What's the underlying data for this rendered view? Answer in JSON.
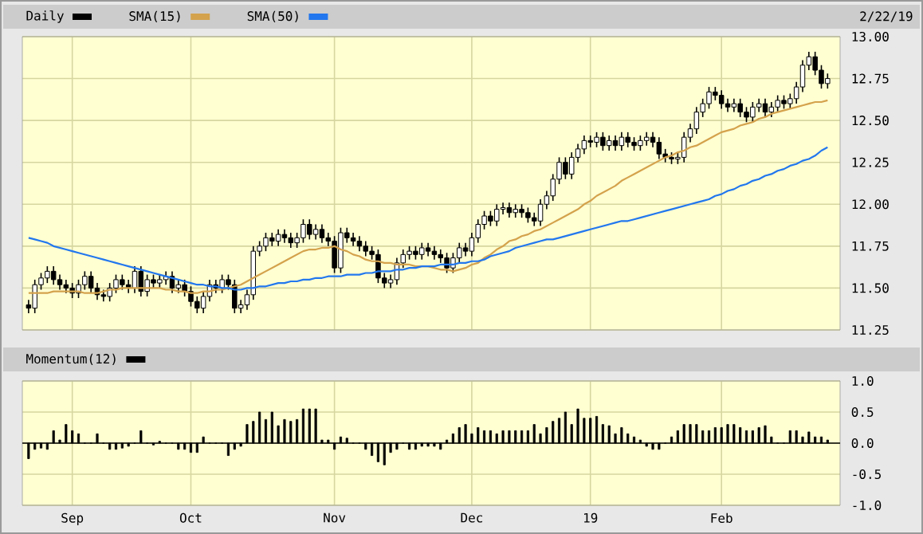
{
  "chart_data": [
    {
      "type": "candlestick",
      "categories": [
        null,
        null,
        null,
        null,
        null,
        null,
        null,
        null,
        null,
        null,
        null,
        null,
        null,
        null,
        null,
        null,
        null,
        null,
        null,
        null,
        null,
        null,
        null,
        null,
        null,
        null,
        null,
        null,
        null,
        null,
        null,
        null,
        null,
        null,
        null,
        null,
        null,
        null,
        null,
        null,
        null,
        null,
        null,
        null,
        null,
        null,
        null,
        null,
        null,
        null,
        null,
        null,
        null,
        null,
        null,
        null,
        null,
        null,
        null,
        null,
        null,
        null,
        null,
        null,
        null,
        null,
        null,
        null,
        null,
        null,
        null,
        null,
        null,
        null,
        null,
        null,
        null,
        null,
        null,
        null,
        null,
        null,
        null,
        null,
        null,
        null,
        null,
        null,
        null,
        null,
        null,
        null,
        null,
        null,
        null,
        null,
        null,
        null,
        null,
        null,
        null,
        null,
        null,
        null,
        null,
        null,
        null,
        null,
        null,
        null,
        null,
        null,
        null,
        null,
        null,
        null,
        null,
        null,
        null,
        null,
        null,
        null,
        null,
        null,
        null,
        null,
        null,
        null,
        null
      ],
      "series": [
        {
          "name": "Daily",
          "type": "candlestick",
          "color": "#000000",
          "ohlc": [
            [
              11.4,
              11.43,
              11.35,
              11.38
            ],
            [
              11.38,
              11.55,
              11.35,
              11.52
            ],
            [
              11.52,
              11.59,
              11.49,
              11.56
            ],
            [
              11.56,
              11.63,
              11.53,
              11.6
            ],
            [
              11.6,
              11.63,
              11.52,
              11.55
            ],
            [
              11.55,
              11.58,
              11.49,
              11.52
            ],
            [
              11.52,
              11.55,
              11.47,
              11.5
            ],
            [
              11.5,
              11.53,
              11.44,
              11.47
            ],
            [
              11.47,
              11.55,
              11.44,
              11.52
            ],
            [
              11.52,
              11.6,
              11.49,
              11.57
            ],
            [
              11.57,
              11.6,
              11.47,
              11.5
            ],
            [
              11.5,
              11.53,
              11.43,
              11.46
            ],
            [
              11.46,
              11.49,
              11.42,
              11.45
            ],
            [
              11.45,
              11.53,
              11.42,
              11.5
            ],
            [
              11.5,
              11.58,
              11.47,
              11.55
            ],
            [
              11.55,
              11.58,
              11.49,
              11.52
            ],
            [
              11.52,
              11.55,
              11.47,
              11.5
            ],
            [
              11.5,
              11.63,
              11.47,
              11.6
            ],
            [
              11.6,
              11.63,
              11.45,
              11.48
            ],
            [
              11.48,
              11.58,
              11.45,
              11.55
            ],
            [
              11.55,
              11.58,
              11.5,
              11.53
            ],
            [
              11.53,
              11.58,
              11.5,
              11.55
            ],
            [
              11.55,
              11.6,
              11.52,
              11.57
            ],
            [
              11.57,
              11.6,
              11.47,
              11.5
            ],
            [
              11.5,
              11.55,
              11.47,
              11.52
            ],
            [
              11.52,
              11.55,
              11.45,
              11.48
            ],
            [
              11.48,
              11.51,
              11.39,
              11.42
            ],
            [
              11.42,
              11.45,
              11.35,
              11.38
            ],
            [
              11.38,
              11.48,
              11.35,
              11.45
            ],
            [
              11.45,
              11.55,
              11.42,
              11.52
            ],
            [
              11.52,
              11.55,
              11.47,
              11.5
            ],
            [
              11.5,
              11.58,
              11.47,
              11.55
            ],
            [
              11.55,
              11.58,
              11.49,
              11.52
            ],
            [
              11.52,
              11.55,
              11.35,
              11.38
            ],
            [
              11.38,
              11.43,
              11.35,
              11.4
            ],
            [
              11.4,
              11.49,
              11.37,
              11.46
            ],
            [
              11.46,
              11.75,
              11.43,
              11.72
            ],
            [
              11.72,
              11.78,
              11.69,
              11.75
            ],
            [
              11.75,
              11.83,
              11.72,
              11.8
            ],
            [
              11.8,
              11.83,
              11.75,
              11.78
            ],
            [
              11.78,
              11.85,
              11.75,
              11.82
            ],
            [
              11.82,
              11.85,
              11.77,
              11.8
            ],
            [
              11.8,
              11.83,
              11.74,
              11.77
            ],
            [
              11.77,
              11.83,
              11.74,
              11.8
            ],
            [
              11.8,
              11.91,
              11.77,
              11.88
            ],
            [
              11.88,
              11.91,
              11.79,
              11.82
            ],
            [
              11.82,
              11.88,
              11.79,
              11.85
            ],
            [
              11.85,
              11.88,
              11.77,
              11.8
            ],
            [
              11.8,
              11.83,
              11.75,
              11.78
            ],
            [
              11.78,
              11.81,
              11.59,
              11.62
            ],
            [
              11.62,
              11.86,
              11.59,
              11.83
            ],
            [
              11.83,
              11.86,
              11.77,
              11.8
            ],
            [
              11.8,
              11.83,
              11.75,
              11.78
            ],
            [
              11.78,
              11.81,
              11.72,
              11.75
            ],
            [
              11.75,
              11.78,
              11.69,
              11.72
            ],
            [
              11.72,
              11.75,
              11.67,
              11.7
            ],
            [
              11.7,
              11.73,
              11.53,
              11.56
            ],
            [
              11.56,
              11.59,
              11.5,
              11.53
            ],
            [
              11.53,
              11.58,
              11.5,
              11.55
            ],
            [
              11.55,
              11.68,
              11.52,
              11.65
            ],
            [
              11.65,
              11.73,
              11.62,
              11.7
            ],
            [
              11.7,
              11.75,
              11.67,
              11.72
            ],
            [
              11.72,
              11.75,
              11.67,
              11.7
            ],
            [
              11.7,
              11.77,
              11.67,
              11.74
            ],
            [
              11.74,
              11.77,
              11.69,
              11.72
            ],
            [
              11.72,
              11.75,
              11.67,
              11.7
            ],
            [
              11.7,
              11.73,
              11.65,
              11.68
            ],
            [
              11.68,
              11.71,
              11.59,
              11.62
            ],
            [
              11.62,
              11.71,
              11.59,
              11.68
            ],
            [
              11.68,
              11.77,
              11.65,
              11.74
            ],
            [
              11.74,
              11.77,
              11.69,
              11.72
            ],
            [
              11.72,
              11.83,
              11.69,
              11.8
            ],
            [
              11.8,
              11.91,
              11.77,
              11.88
            ],
            [
              11.88,
              11.96,
              11.85,
              11.93
            ],
            [
              11.93,
              11.96,
              11.87,
              11.9
            ],
            [
              11.9,
              12.0,
              11.87,
              11.97
            ],
            [
              11.97,
              12.01,
              11.94,
              11.98
            ],
            [
              11.98,
              12.01,
              11.92,
              11.95
            ],
            [
              11.95,
              12.0,
              11.92,
              11.97
            ],
            [
              11.97,
              12.0,
              11.92,
              11.95
            ],
            [
              11.95,
              11.98,
              11.89,
              11.92
            ],
            [
              11.92,
              11.95,
              11.87,
              11.9
            ],
            [
              11.9,
              12.03,
              11.87,
              12.0
            ],
            [
              12.0,
              12.08,
              11.97,
              12.05
            ],
            [
              12.05,
              12.18,
              12.02,
              12.15
            ],
            [
              12.15,
              12.28,
              12.12,
              12.25
            ],
            [
              12.25,
              12.28,
              12.15,
              12.18
            ],
            [
              12.18,
              12.31,
              12.15,
              12.28
            ],
            [
              12.28,
              12.36,
              12.25,
              12.33
            ],
            [
              12.33,
              12.41,
              12.3,
              12.38
            ],
            [
              12.38,
              12.41,
              12.34,
              12.37
            ],
            [
              12.37,
              12.43,
              12.34,
              12.4
            ],
            [
              12.4,
              12.43,
              12.32,
              12.35
            ],
            [
              12.35,
              12.41,
              12.32,
              12.38
            ],
            [
              12.38,
              12.41,
              12.32,
              12.35
            ],
            [
              12.35,
              12.43,
              12.32,
              12.4
            ],
            [
              12.4,
              12.43,
              12.34,
              12.37
            ],
            [
              12.37,
              12.4,
              12.32,
              12.35
            ],
            [
              12.35,
              12.41,
              12.32,
              12.38
            ],
            [
              12.38,
              12.43,
              12.35,
              12.4
            ],
            [
              12.4,
              12.43,
              12.34,
              12.37
            ],
            [
              12.37,
              12.4,
              12.27,
              12.3
            ],
            [
              12.3,
              12.33,
              12.25,
              12.28
            ],
            [
              12.28,
              12.31,
              12.24,
              12.27
            ],
            [
              12.27,
              12.31,
              12.24,
              12.28
            ],
            [
              12.28,
              12.43,
              12.25,
              12.4
            ],
            [
              12.4,
              12.48,
              12.37,
              12.45
            ],
            [
              12.45,
              12.58,
              12.42,
              12.55
            ],
            [
              12.55,
              12.63,
              12.52,
              12.6
            ],
            [
              12.6,
              12.7,
              12.57,
              12.67
            ],
            [
              12.67,
              12.7,
              12.62,
              12.65
            ],
            [
              12.65,
              12.68,
              12.57,
              12.6
            ],
            [
              12.6,
              12.63,
              12.55,
              12.58
            ],
            [
              12.58,
              12.63,
              12.55,
              12.6
            ],
            [
              12.6,
              12.63,
              12.52,
              12.55
            ],
            [
              12.55,
              12.58,
              12.49,
              12.52
            ],
            [
              12.52,
              12.61,
              12.49,
              12.58
            ],
            [
              12.58,
              12.63,
              12.55,
              12.6
            ],
            [
              12.6,
              12.63,
              12.52,
              12.55
            ],
            [
              12.55,
              12.61,
              12.52,
              12.58
            ],
            [
              12.58,
              12.65,
              12.55,
              12.62
            ],
            [
              12.62,
              12.65,
              12.57,
              12.6
            ],
            [
              12.6,
              12.66,
              12.57,
              12.63
            ],
            [
              12.63,
              12.73,
              12.6,
              12.7
            ],
            [
              12.7,
              12.86,
              12.67,
              12.83
            ],
            [
              12.83,
              12.91,
              12.8,
              12.88
            ],
            [
              12.88,
              12.91,
              12.77,
              12.8
            ],
            [
              12.8,
              12.83,
              12.69,
              12.72
            ],
            [
              12.72,
              12.78,
              12.69,
              12.75
            ]
          ]
        },
        {
          "name": "SMA(15)",
          "type": "line",
          "color": "#d4a24c",
          "values": [
            11.47,
            11.47,
            11.47,
            11.47,
            11.48,
            11.48,
            11.48,
            11.48,
            11.48,
            11.47,
            11.47,
            11.47,
            11.48,
            11.49,
            11.49,
            11.5,
            11.5,
            11.5,
            11.5,
            11.5,
            11.5,
            11.5,
            11.49,
            11.49,
            11.48,
            11.48,
            11.47,
            11.47,
            11.48,
            11.48,
            11.49,
            11.49,
            11.5,
            11.51,
            11.52,
            11.54,
            11.56,
            11.58,
            11.6,
            11.62,
            11.64,
            11.66,
            11.68,
            11.7,
            11.72,
            11.73,
            11.73,
            11.74,
            11.74,
            11.75,
            11.73,
            11.72,
            11.7,
            11.69,
            11.67,
            11.66,
            11.66,
            11.65,
            11.65,
            11.64,
            11.64,
            11.64,
            11.63,
            11.63,
            11.63,
            11.62,
            11.61,
            11.61,
            11.6,
            11.61,
            11.62,
            11.64,
            11.65,
            11.68,
            11.7,
            11.73,
            11.75,
            11.78,
            11.79,
            11.81,
            11.82,
            11.84,
            11.85,
            11.87,
            11.89,
            11.91,
            11.93,
            11.95,
            11.97,
            12.0,
            12.02,
            12.05,
            12.07,
            12.09,
            12.11,
            12.14,
            12.16,
            12.18,
            12.2,
            12.22,
            12.24,
            12.26,
            12.28,
            12.29,
            12.31,
            12.32,
            12.34,
            12.35,
            12.37,
            12.39,
            12.41,
            12.43,
            12.44,
            12.45,
            12.47,
            12.48,
            12.49,
            12.51,
            12.52,
            12.54,
            12.55,
            12.56,
            12.57,
            12.58,
            12.59,
            12.6,
            12.61,
            12.61,
            12.62
          ]
        },
        {
          "name": "SMA(50)",
          "type": "line",
          "color": "#2277ee",
          "values": [
            11.8,
            11.79,
            11.78,
            11.77,
            11.75,
            11.74,
            11.73,
            11.72,
            11.71,
            11.7,
            11.69,
            11.68,
            11.67,
            11.66,
            11.65,
            11.64,
            11.63,
            11.62,
            11.61,
            11.6,
            11.59,
            11.58,
            11.57,
            11.56,
            11.55,
            11.54,
            11.53,
            11.52,
            11.52,
            11.51,
            11.51,
            11.5,
            11.5,
            11.49,
            11.49,
            11.5,
            11.5,
            11.51,
            11.51,
            11.52,
            11.53,
            11.53,
            11.54,
            11.54,
            11.55,
            11.55,
            11.56,
            11.56,
            11.57,
            11.57,
            11.57,
            11.58,
            11.58,
            11.58,
            11.59,
            11.59,
            11.6,
            11.6,
            11.6,
            11.61,
            11.61,
            11.62,
            11.62,
            11.63,
            11.63,
            11.63,
            11.64,
            11.64,
            11.64,
            11.65,
            11.65,
            11.66,
            11.66,
            11.67,
            11.69,
            11.7,
            11.71,
            11.72,
            11.74,
            11.75,
            11.76,
            11.77,
            11.78,
            11.79,
            11.79,
            11.8,
            11.81,
            11.82,
            11.83,
            11.84,
            11.85,
            11.86,
            11.87,
            11.88,
            11.89,
            11.9,
            11.9,
            11.91,
            11.92,
            11.93,
            11.94,
            11.95,
            11.96,
            11.97,
            11.98,
            11.99,
            12.0,
            12.01,
            12.02,
            12.03,
            12.05,
            12.06,
            12.08,
            12.09,
            12.11,
            12.12,
            12.14,
            12.15,
            12.17,
            12.18,
            12.2,
            12.21,
            12.23,
            12.24,
            12.26,
            12.27,
            12.29,
            12.32,
            12.34
          ]
        }
      ],
      "ylim": [
        11.25,
        13
      ],
      "yticks": [
        {
          "value": 11.25,
          "label": "11.25"
        },
        {
          "value": 11.5,
          "label": "11.50"
        },
        {
          "value": 11.75,
          "label": "11.75"
        },
        {
          "value": 12,
          "label": "12.00"
        },
        {
          "value": 12.25,
          "label": "12.25"
        },
        {
          "value": 12.5,
          "label": "12.50"
        },
        {
          "value": 12.75,
          "label": "12.75"
        },
        {
          "value": 13,
          "label": "13.00"
        }
      ],
      "grid": true,
      "legend": "top",
      "tick_labels": "y",
      "annotations": [
        "2/22/19"
      ]
    },
    {
      "type": "bar",
      "categories": [
        null,
        null,
        null,
        null,
        null,
        null,
        null,
        "Sep",
        null,
        null,
        null,
        null,
        null,
        null,
        null,
        null,
        null,
        null,
        null,
        null,
        null,
        null,
        null,
        null,
        null,
        null,
        "Oct",
        null,
        null,
        null,
        null,
        null,
        null,
        null,
        null,
        null,
        null,
        null,
        null,
        null,
        null,
        null,
        null,
        null,
        null,
        null,
        null,
        null,
        null,
        "Nov",
        null,
        null,
        null,
        null,
        null,
        null,
        null,
        null,
        null,
        null,
        null,
        null,
        null,
        null,
        null,
        null,
        null,
        null,
        null,
        null,
        null,
        "Dec",
        null,
        null,
        null,
        null,
        null,
        null,
        null,
        null,
        null,
        null,
        null,
        null,
        null,
        null,
        null,
        null,
        null,
        null,
        "19",
        null,
        null,
        null,
        null,
        null,
        null,
        null,
        null,
        null,
        null,
        null,
        null,
        null,
        null,
        null,
        null,
        null,
        null,
        null,
        null,
        "Feb",
        null,
        null,
        null,
        null,
        null,
        null,
        null,
        null,
        null,
        null,
        null,
        null,
        null,
        null,
        null,
        null,
        null
      ],
      "series": [
        {
          "name": "Momentum(12)",
          "color": "#000000",
          "values": [
            -0.25,
            -0.1,
            -0.08,
            -0.1,
            0.2,
            0.05,
            0.3,
            0.2,
            0.15,
            0.0,
            0.0,
            0.15,
            0.0,
            -0.1,
            -0.1,
            -0.08,
            -0.05,
            0.0,
            0.2,
            0.0,
            -0.03,
            0.03,
            0.0,
            0.0,
            -0.1,
            -0.1,
            -0.15,
            -0.15,
            0.1,
            0.0,
            0.0,
            0.0,
            -0.2,
            -0.1,
            -0.05,
            0.3,
            0.35,
            0.5,
            0.38,
            0.5,
            0.28,
            0.38,
            0.35,
            0.38,
            0.55,
            0.55,
            0.55,
            0.05,
            0.05,
            -0.1,
            0.1,
            0.08,
            0.0,
            0.0,
            -0.1,
            -0.2,
            -0.3,
            -0.35,
            -0.15,
            -0.1,
            0.0,
            -0.1,
            -0.1,
            -0.05,
            -0.05,
            -0.05,
            -0.1,
            0.05,
            0.15,
            0.25,
            0.3,
            0.15,
            0.25,
            0.2,
            0.2,
            0.15,
            0.2,
            0.2,
            0.2,
            0.2,
            0.2,
            0.3,
            0.15,
            0.25,
            0.35,
            0.4,
            0.5,
            0.3,
            0.55,
            0.4,
            0.4,
            0.43,
            0.3,
            0.28,
            0.15,
            0.25,
            0.15,
            0.1,
            0.05,
            -0.05,
            -0.1,
            -0.1,
            0.0,
            0.1,
            0.2,
            0.3,
            0.3,
            0.3,
            0.2,
            0.2,
            0.25,
            0.25,
            0.3,
            0.3,
            0.25,
            0.2,
            0.2,
            0.25,
            0.28,
            0.1,
            0.0,
            0.0,
            0.2,
            0.2,
            0.1,
            0.18,
            0.1,
            0.1,
            0.05
          ]
        }
      ],
      "ylim": [
        -1,
        1
      ],
      "yticks": [
        {
          "value": -1,
          "label": "-1.0"
        },
        {
          "value": -0.5,
          "label": "-0.5"
        },
        {
          "value": 0,
          "label": "0.0"
        },
        {
          "value": 0.5,
          "label": "0.5"
        },
        {
          "value": 1,
          "label": "1.0"
        }
      ],
      "grid": true,
      "legend": "top"
    }
  ]
}
